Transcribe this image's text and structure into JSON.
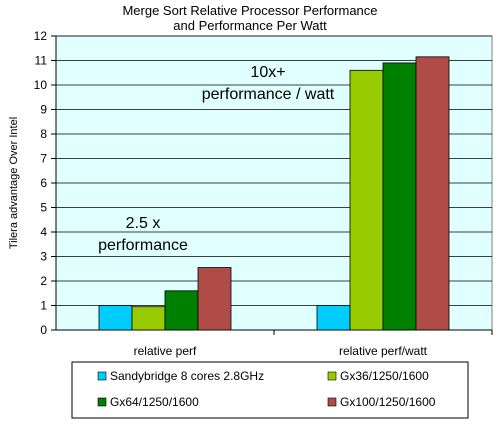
{
  "chart_data": {
    "type": "bar",
    "title": [
      "Merge Sort Relative Processor Performance",
      "and Performance Per Watt"
    ],
    "ylabel": "Tilera advantage Over  Intel",
    "xlabel": "",
    "ylim": [
      0,
      12
    ],
    "yticks": [
      0,
      1,
      2,
      3,
      4,
      5,
      6,
      7,
      8,
      9,
      10,
      11,
      12
    ],
    "grid": true,
    "legend_position": "bottom",
    "categories": [
      "relative perf",
      "relative perf/watt"
    ],
    "series": [
      {
        "name": "Sandybridge 8 cores 2.8GHz",
        "color": "#00ccff",
        "values": [
          1,
          1
        ]
      },
      {
        "name": "Gx36/1250/1600",
        "color": "#99cc00",
        "values": [
          0.95,
          10.6
        ]
      },
      {
        "name": "Gx64/1250/1600",
        "color": "#008000",
        "values": [
          1.6,
          10.9
        ]
      },
      {
        "name": "Gx100/1250/1600",
        "color": "#b04c48",
        "values": [
          2.55,
          11.15
        ]
      }
    ],
    "annotations": [
      {
        "lines": [
          "2.5 x",
          "performance"
        ]
      },
      {
        "lines": [
          "10x+",
          "performance / watt"
        ]
      }
    ],
    "plot_background": "#e0ffff"
  }
}
